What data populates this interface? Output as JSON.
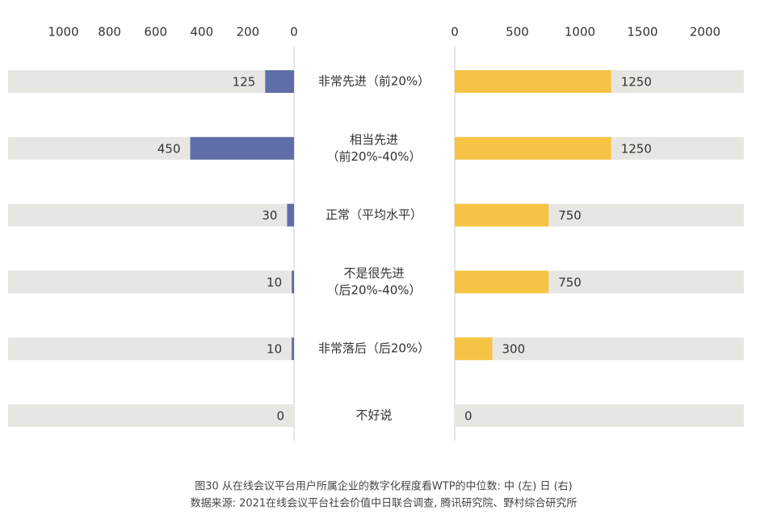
{
  "chart_data": {
    "type": "butterfly",
    "categories": [
      [
        "非常先进（前20%）"
      ],
      [
        "相当先进",
        "（前20%-40%）"
      ],
      [
        "正常（平均水平）"
      ],
      [
        "不是很先进",
        "（后20%-40%）"
      ],
      [
        "非常落后（后20%）"
      ],
      [
        "不好说"
      ]
    ],
    "series": [
      {
        "side": "left",
        "color": "#5f6ea8",
        "values": [
          125,
          450,
          30,
          10,
          10,
          0
        ],
        "xlim": [
          0,
          1240
        ],
        "xticks": [
          1000,
          800,
          600,
          400,
          200,
          0
        ]
      },
      {
        "side": "right",
        "color": "#f6c344",
        "values": [
          1250,
          1250,
          750,
          750,
          300,
          0
        ],
        "xlim": [
          0,
          2310
        ],
        "xticks": [
          0,
          500,
          1000,
          1500,
          2000
        ]
      }
    ],
    "background_color": "#e8e6e2",
    "caption": [
      "图30  从在线会议平台用户所属企业的数字化程度看WTP的中位数: 中 (左) 日 (右)",
      "数据来源: 2021在线会议平台社会价值中日联合调查, 腾讯研究院、野村综合研究所"
    ]
  }
}
